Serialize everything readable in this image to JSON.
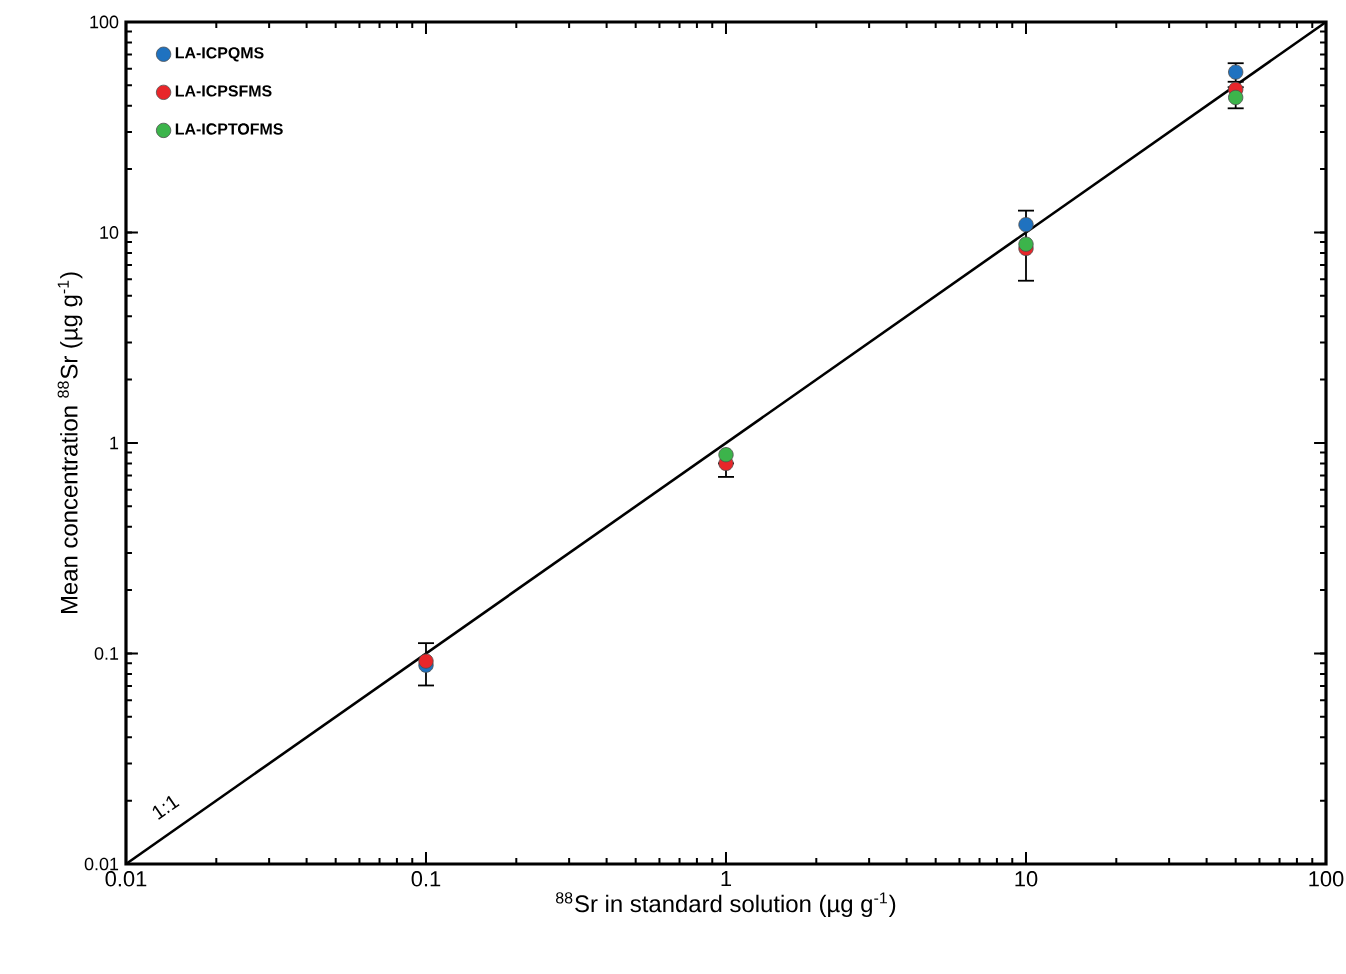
{
  "chart_data": {
    "type": "scatter",
    "xlabel": "$^{88}$Sr in standard solution (µg g$^{-1}$)",
    "ylabel": "Mean concentration $^{88}$Sr (µg g$^{-1}$)",
    "x": [
      0.1,
      1,
      10,
      50
    ],
    "series": [
      {
        "name": "LA-ICPQMS",
        "color": "#1f72c0",
        "values": [
          0.088,
          null,
          10.9,
          57.8
        ],
        "errors": [
          null,
          null,
          null,
          [
            52,
            63.7
          ]
        ]
      },
      {
        "name": "LA-ICPSFMS",
        "color": "#e8262a",
        "values": [
          0.092,
          0.8,
          8.4,
          47.8
        ],
        "errors": [
          [
            0.0705,
            0.112
          ],
          [
            0.69,
            0.8
          ],
          [
            5.9,
            12.7
          ],
          null
        ]
      },
      {
        "name": "LA-ICPTOFMS",
        "color": "#3cb44b",
        "values": [
          null,
          0.88,
          8.8,
          43.8
        ],
        "errors": [
          null,
          null,
          null,
          [
            38.9,
            49
          ]
        ]
      },
      {
        "type": "line",
        "color": "#000000",
        "x": [
          0.01,
          100
        ],
        "values": [
          0.01,
          100
        ],
        "marker": "none"
      }
    ],
    "annotations": [
      "1:1"
    ],
    "log": "xy",
    "xlim": [
      0.01,
      100
    ],
    "ylim": [
      0.01,
      100
    ],
    "xticks": [
      0.01,
      0.1,
      1,
      10,
      100
    ],
    "yticks": [
      0.01,
      0.1,
      1,
      10,
      100
    ],
    "marker": "circle",
    "legend": "top left",
    "grid": false
  }
}
